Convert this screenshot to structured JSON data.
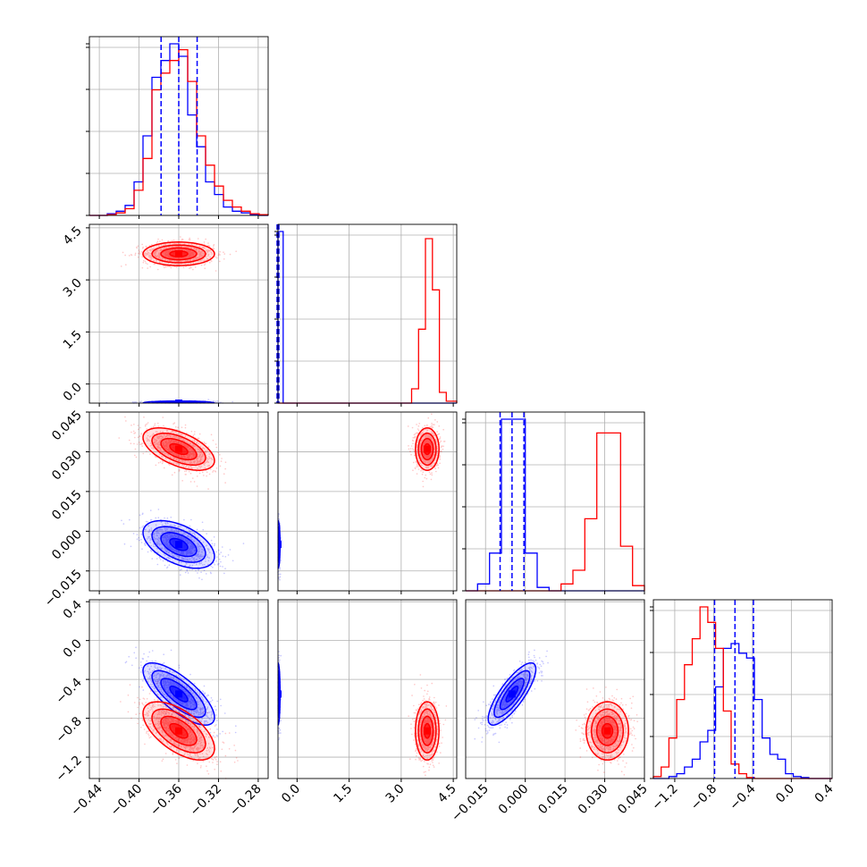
{
  "colors": {
    "blue": "#0000ff",
    "red": "#ff0000",
    "grid": "#b0b0b0",
    "axis": "#000000"
  },
  "chart_data": {
    "type": "corner",
    "variables": 4,
    "axes": [
      {
        "ticks": [
          -0.44,
          -0.4,
          -0.36,
          -0.32,
          -0.28
        ],
        "labels": [
          "−0.44",
          "−0.40",
          "−0.36",
          "−0.32",
          "−0.28"
        ]
      },
      {
        "ticks": [
          0.0,
          1.5,
          3.0,
          4.5
        ],
        "labels": [
          "0.0",
          "1.5",
          "3.0",
          "4.5"
        ]
      },
      {
        "ticks": [
          -0.015,
          0.0,
          0.015,
          0.03,
          0.045
        ],
        "labels": [
          "−0.015",
          "0.000",
          "0.015",
          "0.030",
          "0.045"
        ]
      },
      {
        "ticks": [
          -1.2,
          -0.8,
          -0.4,
          0.0,
          0.4
        ],
        "labels": [
          "−1.2",
          "−0.8",
          "−0.4",
          "0.0",
          "0.4"
        ]
      }
    ],
    "ranges": [
      [
        -0.45,
        -0.27
      ],
      [
        -0.55,
        4.6
      ],
      [
        -0.0225,
        0.045
      ],
      [
        -1.42,
        0.42
      ]
    ],
    "grid": true,
    "samples": {
      "blue": {
        "mean": [
          -0.36,
          -0.55,
          -0.005,
          -0.55
        ],
        "sd": [
          0.018,
          0.03,
          0.0045,
          0.16
        ],
        "corr": {
          "0-2": -0.5,
          "0-3": -0.75,
          "2-3": 0.8
        }
      },
      "red": {
        "mean": [
          -0.36,
          3.75,
          0.031,
          -0.93
        ],
        "sd": [
          0.018,
          0.17,
          0.004,
          0.15
        ],
        "corr": {
          "0-2": -0.55,
          "0-3": -0.6,
          "1-2": 0.0,
          "1-3": 0.0,
          "2-3": 0.0
        }
      }
    },
    "histograms": [
      {
        "edges": [
          -0.45,
          -0.441,
          -0.432,
          -0.423,
          -0.414,
          -0.405,
          -0.396,
          -0.387,
          -0.378,
          -0.369,
          -0.36,
          -0.351,
          -0.342,
          -0.333,
          -0.324,
          -0.315,
          -0.306,
          -0.297,
          -0.288,
          -0.279,
          -0.27
        ],
        "blue": [
          0,
          0,
          2,
          5,
          12,
          40,
          95,
          165,
          185,
          205,
          190,
          120,
          82,
          40,
          25,
          10,
          5,
          3,
          1,
          0
        ],
        "red": [
          0,
          0,
          1,
          3,
          8,
          30,
          68,
          150,
          170,
          185,
          198,
          160,
          95,
          60,
          35,
          18,
          10,
          5,
          2,
          1
        ]
      },
      {
        "edges": [
          -0.55,
          -0.4,
          3.3,
          3.5,
          3.7,
          3.9,
          4.1,
          4.3,
          4.6
        ],
        "blue": [
          720,
          0,
          0,
          0,
          0,
          0,
          0,
          0
        ],
        "red": [
          0,
          0,
          60,
          310,
          690,
          475,
          45,
          8
        ]
      },
      {
        "edges": [
          -0.0225,
          -0.018,
          -0.0135,
          -0.009,
          -0.0045,
          0.0,
          0.0045,
          0.009,
          0.0135,
          0.018,
          0.0225,
          0.027,
          0.0315,
          0.036,
          0.0405,
          0.045
        ],
        "blue": [
          0,
          0.04,
          0.22,
          1.0,
          1.0,
          0.22,
          0.02,
          0,
          0,
          0,
          0,
          0,
          0,
          0,
          0
        ],
        "red": [
          0,
          0,
          0,
          0,
          0,
          0,
          0,
          0,
          0.04,
          0.12,
          0.42,
          0.92,
          0.92,
          0.26,
          0.03
        ]
      },
      {
        "edges": [
          -1.42,
          -1.34,
          -1.26,
          -1.18,
          -1.1,
          -1.02,
          -0.94,
          -0.86,
          -0.78,
          -0.7,
          -0.62,
          -0.54,
          -0.46,
          -0.38,
          -0.3,
          -0.22,
          -0.14,
          -0.06,
          0.02,
          0.1,
          0.18,
          0.26,
          0.34,
          0.42
        ],
        "blue": [
          0,
          0,
          2,
          5,
          12,
          20,
          38,
          50,
          95,
          135,
          140,
          130,
          125,
          82,
          42,
          25,
          20,
          5,
          2,
          1,
          0,
          0,
          0
        ],
        "red": [
          2,
          12,
          42,
          82,
          118,
          145,
          178,
          162,
          135,
          70,
          15,
          5,
          1,
          0,
          0,
          0,
          0,
          0,
          0,
          0,
          0,
          0,
          0
        ]
      }
    ],
    "quantile_lines": {
      "blue": [
        [
          -0.3778,
          -0.36,
          -0.3415
        ],
        [
          -0.575,
          -0.55,
          -0.525
        ],
        [
          -0.0095,
          -0.005,
          -0.0005
        ],
        [
          -0.79,
          -0.58,
          -0.39
        ]
      ]
    }
  }
}
